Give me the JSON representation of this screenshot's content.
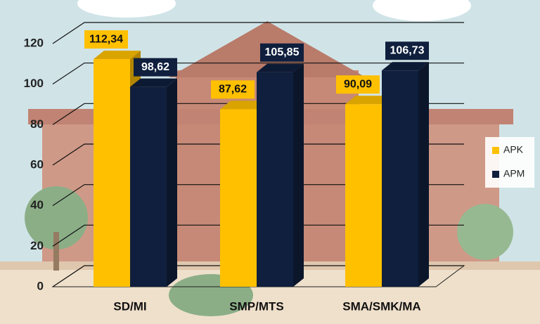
{
  "chart_data": {
    "type": "bar3d",
    "categories": [
      "SD/MI",
      "SMP/MTS",
      "SMA/SMK/MA"
    ],
    "series": [
      {
        "name": "APK",
        "color": "#ffc000",
        "values": [
          112.34,
          87.62,
          90.09
        ],
        "value_labels": [
          "112,34",
          "87,62",
          "90,09"
        ]
      },
      {
        "name": "APM",
        "color": "#0f1f3d",
        "values": [
          98.62,
          105.85,
          106.73
        ],
        "value_labels": [
          "98,62",
          "105,85",
          "106,73"
        ]
      }
    ],
    "ylim": [
      0,
      120
    ],
    "yticks": [
      0,
      20,
      40,
      60,
      80,
      100,
      120
    ],
    "grid": true,
    "legend": "right"
  }
}
